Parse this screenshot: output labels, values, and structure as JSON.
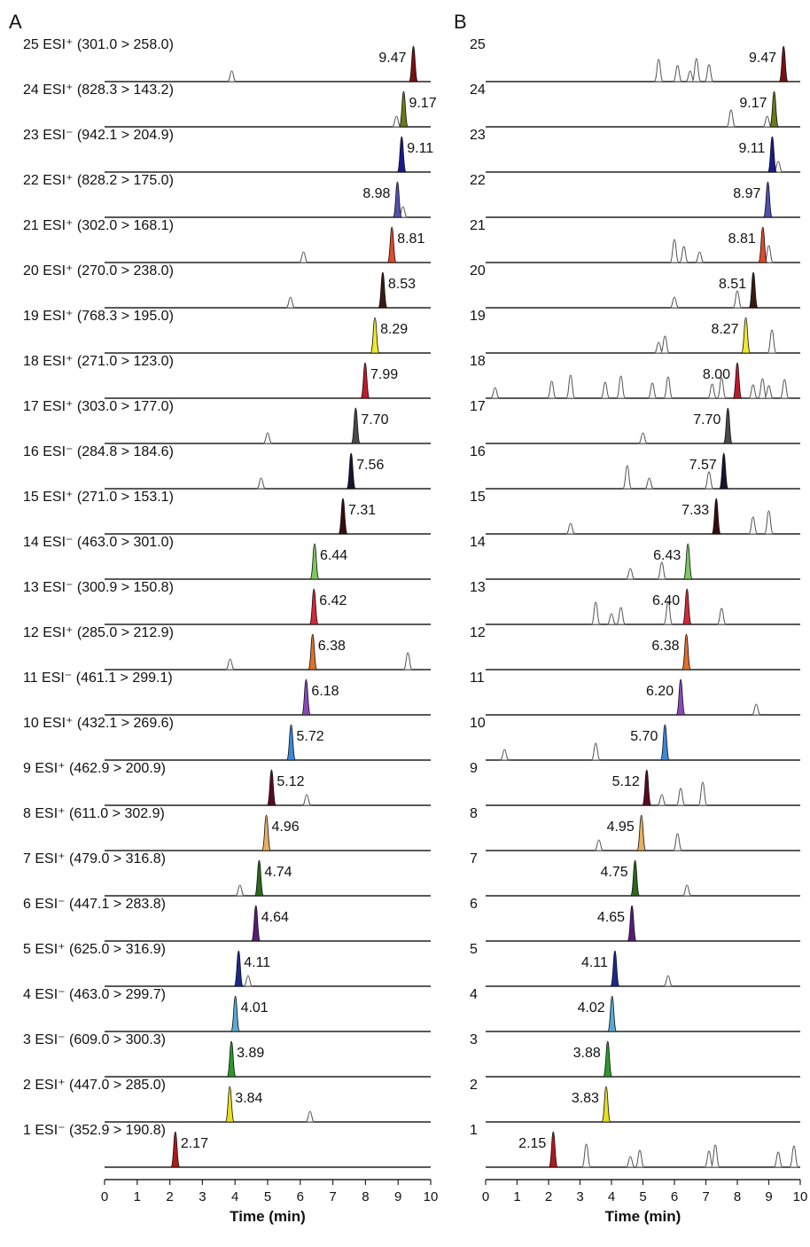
{
  "chart_data": [
    {
      "type": "line",
      "panel": "A",
      "xlabel": "Time (min)",
      "xlim": [
        0,
        10
      ],
      "xticks": [
        0,
        1,
        2,
        3,
        4,
        5,
        6,
        7,
        8,
        9,
        10
      ],
      "traces": [
        {
          "id": "25",
          "label": "25 ESI⁺ (301.0 > 258.0)",
          "rt": 9.47,
          "color": "#7a1010",
          "minor": [
            3.9
          ]
        },
        {
          "id": "24",
          "label": "24 ESI⁺ (828.3 > 143.2)",
          "rt": 9.17,
          "color": "#6b7a1a",
          "minor": [
            8.95
          ]
        },
        {
          "id": "23",
          "label": "23 ESI⁻ (942.1 > 204.9)",
          "rt": 9.11,
          "color": "#1a1a8c",
          "minor": []
        },
        {
          "id": "22",
          "label": "22 ESI⁺ (828.2 > 175.0)",
          "rt": 8.98,
          "color": "#5050b0",
          "minor": [
            9.15
          ]
        },
        {
          "id": "21",
          "label": "21 ESI⁺ (302.0 > 168.1)",
          "rt": 8.81,
          "color": "#e04a2a",
          "minor": [
            6.1
          ]
        },
        {
          "id": "20",
          "label": "20 ESI⁺ (270.0 > 238.0)",
          "rt": 8.53,
          "color": "#3a1a10",
          "minor": [
            5.7
          ]
        },
        {
          "id": "19",
          "label": "19 ESI⁺ (768.3 > 195.0)",
          "rt": 8.29,
          "color": "#f0ea28",
          "minor": []
        },
        {
          "id": "18",
          "label": "18 ESI⁺ (271.0 > 123.0)",
          "rt": 7.99,
          "color": "#c01a2a",
          "minor": []
        },
        {
          "id": "17",
          "label": "17 ESI⁺ (303.0 > 177.0)",
          "rt": 7.7,
          "color": "#4a4a4a",
          "minor": [
            5.0
          ]
        },
        {
          "id": "16",
          "label": "16 ESI⁻ (284.8 > 184.6)",
          "rt": 7.56,
          "color": "#151530",
          "minor": [
            4.8
          ]
        },
        {
          "id": "15",
          "label": "15 ESI⁺ (271.0 > 153.1)",
          "rt": 7.31,
          "color": "#3a0a10",
          "minor": []
        },
        {
          "id": "14",
          "label": "14 ESI⁻ (463.0 > 301.0)",
          "rt": 6.44,
          "color": "#7ec860",
          "minor": []
        },
        {
          "id": "13",
          "label": "13 ESI⁻ (300.9 > 150.8)",
          "rt": 6.42,
          "color": "#d02a3a",
          "minor": []
        },
        {
          "id": "12",
          "label": "12 ESI⁺ (285.0 > 212.9)",
          "rt": 6.38,
          "color": "#e0702a",
          "minor": [
            3.85,
            9.3
          ]
        },
        {
          "id": "11",
          "label": "11 ESI⁻ (461.1 > 299.1)",
          "rt": 6.18,
          "color": "#8a4ab8",
          "minor": []
        },
        {
          "id": "10",
          "label": "10 ESI⁺ (432.1 > 269.6)",
          "rt": 5.72,
          "color": "#3a8ad8",
          "minor": []
        },
        {
          "id": "9",
          "label": "9 ESI⁺ (462.9 > 200.9)",
          "rt": 5.12,
          "color": "#5a0a20",
          "minor": [
            6.2
          ]
        },
        {
          "id": "8",
          "label": "8 ESI⁺ (611.0 > 302.9)",
          "rt": 4.96,
          "color": "#e8b060",
          "minor": []
        },
        {
          "id": "7",
          "label": "7 ESI⁺ (479.0 > 316.8)",
          "rt": 4.74,
          "color": "#2a6a1a",
          "minor": [
            4.15
          ]
        },
        {
          "id": "6",
          "label": "6 ESI⁻ (447.1 > 283.8)",
          "rt": 4.64,
          "color": "#5a1a7a",
          "minor": []
        },
        {
          "id": "5",
          "label": "5 ESI⁺ (625.0 > 316.9)",
          "rt": 4.11,
          "color": "#1a2a8a",
          "minor": [
            4.4
          ]
        },
        {
          "id": "4",
          "label": "4 ESI⁻ (463.0 > 299.7)",
          "rt": 4.01,
          "color": "#5aaad0",
          "minor": []
        },
        {
          "id": "3",
          "label": "3 ESI⁻ (609.0 > 300.3)",
          "rt": 3.89,
          "color": "#2a9a2a",
          "minor": []
        },
        {
          "id": "2",
          "label": "2 ESI⁺ (447.0 > 285.0)",
          "rt": 3.84,
          "color": "#e8e020",
          "minor": [
            6.3
          ]
        },
        {
          "id": "1",
          "label": "1 ESI⁻ (352.9 > 190.8)",
          "rt": 2.17,
          "color": "#b01a1a",
          "minor": []
        }
      ]
    },
    {
      "type": "line",
      "panel": "B",
      "xlabel": "Time (min)",
      "xlim": [
        0,
        10
      ],
      "xticks": [
        0,
        1,
        2,
        3,
        4,
        5,
        6,
        7,
        8,
        9,
        10
      ],
      "traces": [
        {
          "id": "25",
          "label": "25",
          "rt": 9.47,
          "color": "#7a1010",
          "minor": [
            6.5,
            7.1,
            6.7,
            6.1,
            5.5
          ]
        },
        {
          "id": "24",
          "label": "24",
          "rt": 9.17,
          "color": "#6b7a1a",
          "minor": [
            8.95,
            7.8
          ]
        },
        {
          "id": "23",
          "label": "23",
          "rt": 9.11,
          "color": "#1a1a8c",
          "minor": [
            9.3
          ]
        },
        {
          "id": "22",
          "label": "22",
          "rt": 8.97,
          "color": "#5050b0",
          "minor": []
        },
        {
          "id": "21",
          "label": "21",
          "rt": 8.81,
          "color": "#e04a2a",
          "minor": [
            6.8,
            9.0,
            6.0,
            6.3
          ]
        },
        {
          "id": "20",
          "label": "20",
          "rt": 8.51,
          "color": "#3a1a10",
          "minor": [
            6.0,
            8.0
          ]
        },
        {
          "id": "19",
          "label": "19",
          "rt": 8.27,
          "color": "#f0ea28",
          "minor": [
            5.5,
            5.7,
            9.1
          ]
        },
        {
          "id": "18",
          "label": "18",
          "rt": 8.0,
          "color": "#c01a2a",
          "minor": [
            0.3,
            2.1,
            2.7,
            3.8,
            4.3,
            5.3,
            5.8,
            7.2,
            7.5,
            8.5,
            8.8,
            9.0,
            9.5
          ]
        },
        {
          "id": "17",
          "label": "17",
          "rt": 7.7,
          "color": "#4a4a4a",
          "minor": [
            5.0
          ]
        },
        {
          "id": "16",
          "label": "16",
          "rt": 7.57,
          "color": "#151530",
          "minor": [
            5.2,
            7.1,
            4.5
          ]
        },
        {
          "id": "15",
          "label": "15",
          "rt": 7.33,
          "color": "#3a0a10",
          "minor": [
            2.7,
            8.5,
            9.0
          ]
        },
        {
          "id": "14",
          "label": "14",
          "rt": 6.43,
          "color": "#7ec860",
          "minor": [
            4.6,
            5.6
          ]
        },
        {
          "id": "13",
          "label": "13",
          "rt": 6.4,
          "color": "#d02a3a",
          "minor": [
            4.0,
            4.3,
            5.8,
            7.5,
            3.5
          ]
        },
        {
          "id": "12",
          "label": "12",
          "rt": 6.38,
          "color": "#e0702a",
          "minor": []
        },
        {
          "id": "11",
          "label": "11",
          "rt": 6.2,
          "color": "#8a4ab8",
          "minor": [
            8.6
          ]
        },
        {
          "id": "10",
          "label": "10",
          "rt": 5.7,
          "color": "#3a8ad8",
          "minor": [
            0.6,
            3.5
          ]
        },
        {
          "id": "9",
          "label": "9",
          "rt": 5.12,
          "color": "#5a0a20",
          "minor": [
            5.6,
            6.2,
            6.9
          ]
        },
        {
          "id": "8",
          "label": "8",
          "rt": 4.95,
          "color": "#e8b060",
          "minor": [
            3.6,
            6.1
          ]
        },
        {
          "id": "7",
          "label": "7",
          "rt": 4.75,
          "color": "#2a6a1a",
          "minor": [
            6.4
          ]
        },
        {
          "id": "6",
          "label": "6",
          "rt": 4.65,
          "color": "#5a1a7a",
          "minor": []
        },
        {
          "id": "5",
          "label": "5",
          "rt": 4.11,
          "color": "#1a2a8a",
          "minor": [
            5.8
          ]
        },
        {
          "id": "4",
          "label": "4",
          "rt": 4.02,
          "color": "#5aaad0",
          "minor": []
        },
        {
          "id": "3",
          "label": "3",
          "rt": 3.88,
          "color": "#2a9a2a",
          "minor": []
        },
        {
          "id": "2",
          "label": "2",
          "rt": 3.83,
          "color": "#e8e020",
          "minor": []
        },
        {
          "id": "1",
          "label": "1",
          "rt": 2.15,
          "color": "#b01a1a",
          "minor": [
            4.6,
            4.9,
            3.2,
            7.1,
            7.3,
            9.3,
            9.8
          ]
        }
      ]
    }
  ]
}
